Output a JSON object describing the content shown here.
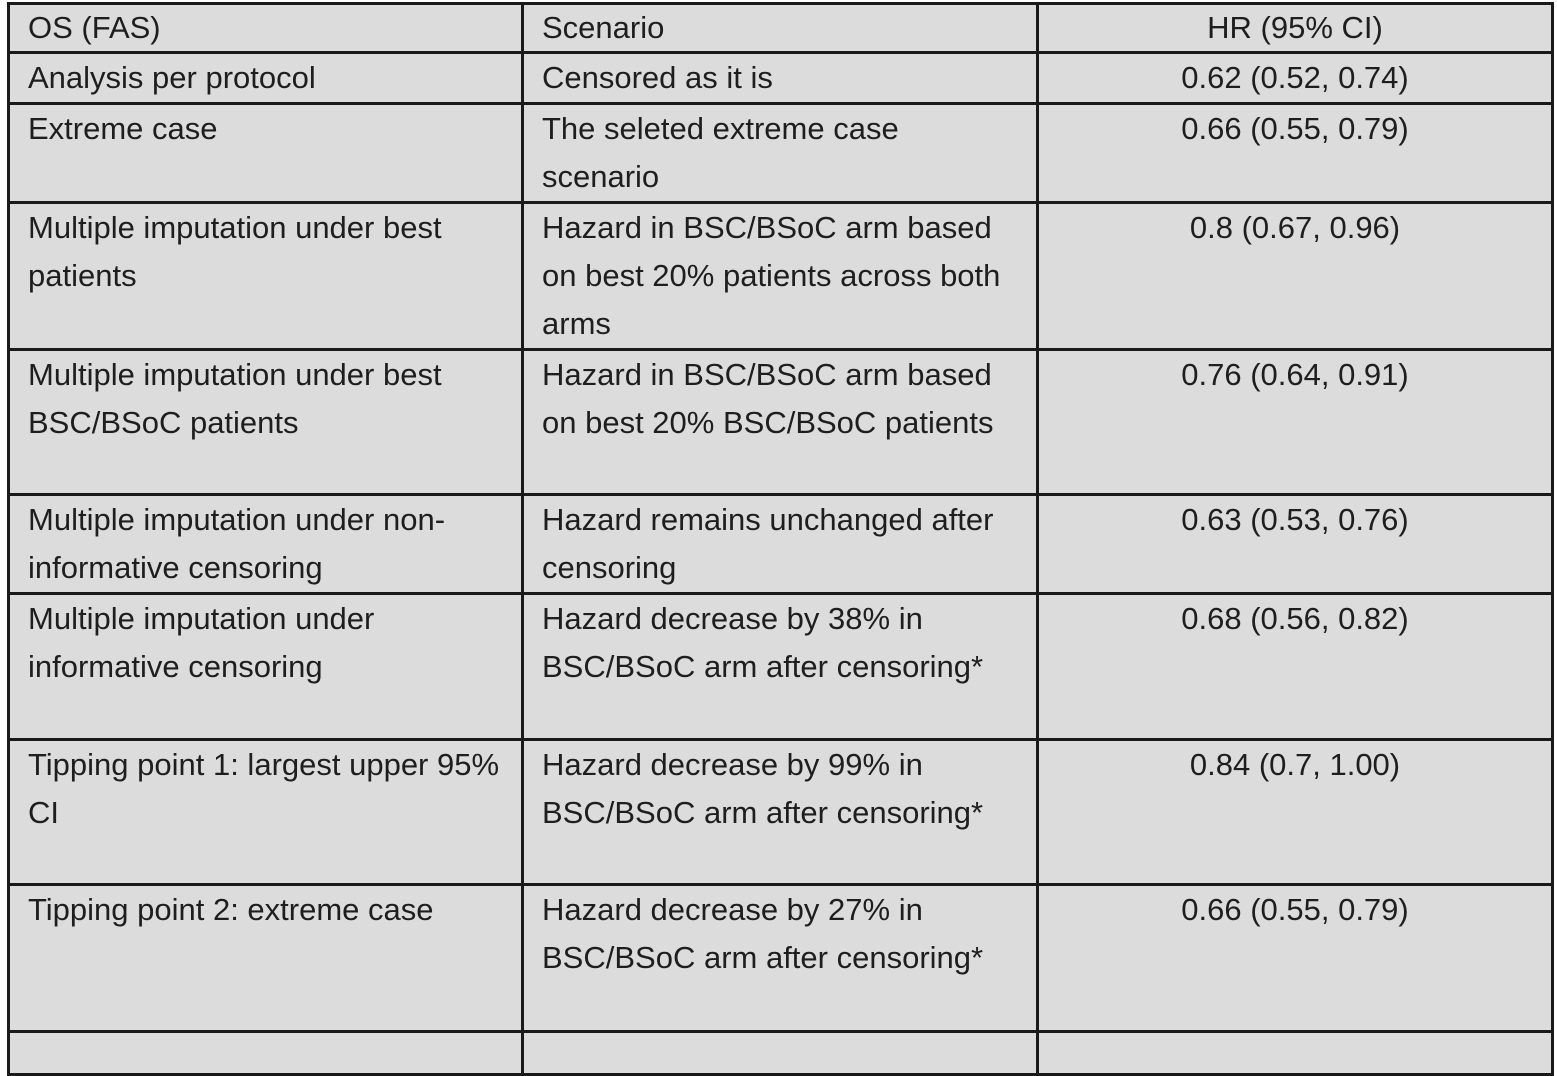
{
  "table": {
    "headers": [
      "OS (FAS)",
      "Scenario",
      "HR (95% CI)"
    ],
    "rows": [
      {
        "analysis": "Analysis per protocol",
        "scenario": "Censored as it is",
        "hr": "0.62 (0.52, 0.74)"
      },
      {
        "analysis": "Extreme case",
        "scenario": "The seleted extreme case scenario",
        "hr": "0.66 (0.55, 0.79)"
      },
      {
        "analysis": "Multiple imputation under best patients",
        "scenario": "Hazard in BSC/BSoC arm based on best 20% patients across both arms",
        "hr": "0.8 (0.67, 0.96)"
      },
      {
        "analysis": "Multiple imputation under best BSC/BSoC patients",
        "scenario": "Hazard in BSC/BSoC arm based on best 20% BSC/BSoC patients",
        "hr": "0.76 (0.64, 0.91)"
      },
      {
        "analysis": "Multiple imputation under non-informative censoring",
        "scenario": "Hazard remains unchanged after censoring",
        "hr": "0.63 (0.53, 0.76)"
      },
      {
        "analysis": "Multiple imputation under informative censoring",
        "scenario": "Hazard decrease by 38% in BSC/BSoC arm after censoring*",
        "hr": "0.68 (0.56, 0.82)"
      },
      {
        "analysis": "Tipping point 1: largest upper 95% CI",
        "scenario": "Hazard decrease by 99% in BSC/BSoC arm after censoring*",
        "hr": "0.84 (0.7, 1.00)"
      },
      {
        "analysis": "Tipping point 2: extreme case",
        "scenario": "Hazard decrease by 27% in BSC/BSoC arm after censoring*",
        "hr": "0.66 (0.55, 0.79)"
      }
    ]
  }
}
